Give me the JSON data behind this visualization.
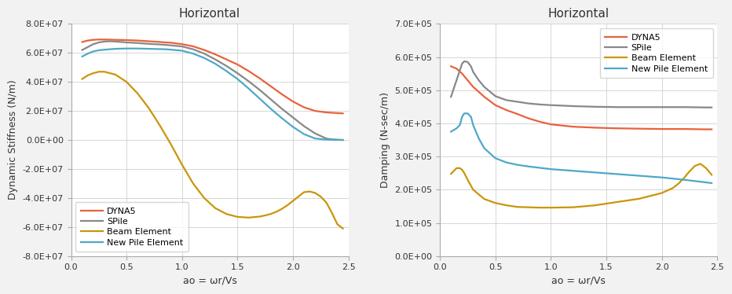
{
  "title": "Horizontal",
  "left_ylabel": "Dynamic Stiffness (N/m)",
  "right_ylabel": "Damping (N-sec/m)",
  "xlabel": "ao = ωr/Vs",
  "colors": {
    "DYNA5": "#E8623C",
    "SPile": "#888888",
    "Beam Element": "#C8960A",
    "New Pile Element": "#4EA8C8"
  },
  "left_ylim": [
    -80000000.0,
    80000000.0
  ],
  "left_yticks": [
    -80000000.0,
    -60000000.0,
    -40000000.0,
    -20000000.0,
    0,
    20000000.0,
    40000000.0,
    60000000.0,
    80000000.0
  ],
  "right_ylim": [
    0,
    700000.0
  ],
  "right_yticks": [
    0,
    100000.0,
    200000.0,
    300000.0,
    400000.0,
    500000.0,
    600000.0,
    700000.0
  ],
  "xlim": [
    0.0,
    2.5
  ],
  "xticks": [
    0.0,
    0.5,
    1.0,
    1.5,
    2.0,
    2.5
  ],
  "left_DYNA5_x": [
    0.1,
    0.15,
    0.2,
    0.25,
    0.3,
    0.4,
    0.5,
    0.6,
    0.7,
    0.8,
    0.85,
    0.9,
    1.0,
    1.1,
    1.2,
    1.3,
    1.4,
    1.5,
    1.6,
    1.7,
    1.8,
    1.9,
    2.0,
    2.1,
    2.2,
    2.3,
    2.4,
    2.45
  ],
  "left_DYNA5_y": [
    67500000.0,
    68500000.0,
    69000000.0,
    69200000.0,
    69200000.0,
    69000000.0,
    68800000.0,
    68500000.0,
    68000000.0,
    67500000.0,
    67200000.0,
    67000000.0,
    66000000.0,
    64500000.0,
    62000000.0,
    59000000.0,
    55500000.0,
    52000000.0,
    47500000.0,
    42500000.0,
    37000000.0,
    31500000.0,
    26500000.0,
    22500000.0,
    20000000.0,
    19000000.0,
    18500000.0,
    18300000.0
  ],
  "left_SPile_x": [
    0.1,
    0.15,
    0.2,
    0.25,
    0.3,
    0.35,
    0.4,
    0.5,
    0.6,
    0.7,
    0.8,
    0.9,
    1.0,
    1.1,
    1.2,
    1.3,
    1.4,
    1.5,
    1.6,
    1.7,
    1.8,
    1.9,
    2.0,
    2.1,
    2.2,
    2.3,
    2.35,
    2.4,
    2.45
  ],
  "left_SPile_y": [
    62000000.0,
    64000000.0,
    66000000.0,
    67200000.0,
    67800000.0,
    68000000.0,
    67800000.0,
    67200000.0,
    66800000.0,
    66200000.0,
    65800000.0,
    65200000.0,
    64400000.0,
    62500000.0,
    59500000.0,
    55500000.0,
    51000000.0,
    46000000.0,
    40500000.0,
    34500000.0,
    28000000.0,
    21500000.0,
    15500000.0,
    9500000.0,
    4500000.0,
    1000000.0,
    400000.0,
    200000.0,
    0.0
  ],
  "left_Beam_x": [
    0.1,
    0.15,
    0.2,
    0.25,
    0.3,
    0.4,
    0.5,
    0.6,
    0.7,
    0.8,
    0.9,
    1.0,
    1.1,
    1.2,
    1.3,
    1.4,
    1.5,
    1.6,
    1.7,
    1.75,
    1.8,
    1.85,
    1.9,
    1.95,
    2.0,
    2.1,
    2.15,
    2.2,
    2.25,
    2.3,
    2.35,
    2.4,
    2.45
  ],
  "left_Beam_y": [
    42000000.0,
    44500000.0,
    46000000.0,
    47000000.0,
    47000000.0,
    45000000.0,
    40000000.0,
    32000000.0,
    22000000.0,
    10000000.0,
    -3000000.0,
    -17000000.0,
    -30000000.0,
    -40000000.0,
    -47000000.0,
    -51000000.0,
    -53000000.0,
    -53500000.0,
    -52800000.0,
    -52000000.0,
    -51000000.0,
    -49500000.0,
    -47500000.0,
    -45000000.0,
    -42000000.0,
    -36000000.0,
    -35500000.0,
    -36500000.0,
    -39000000.0,
    -43000000.0,
    -50000000.0,
    -58000000.0,
    -61000000.0
  ],
  "left_NewPile_x": [
    0.1,
    0.15,
    0.2,
    0.25,
    0.3,
    0.4,
    0.5,
    0.6,
    0.7,
    0.8,
    0.85,
    0.9,
    1.0,
    1.1,
    1.2,
    1.3,
    1.4,
    1.5,
    1.6,
    1.7,
    1.8,
    1.9,
    2.0,
    2.1,
    2.2,
    2.3,
    2.4,
    2.45
  ],
  "left_NewPile_y": [
    57500000.0,
    59500000.0,
    61000000.0,
    61800000.0,
    62200000.0,
    62800000.0,
    63000000.0,
    63000000.0,
    62800000.0,
    62600000.0,
    62500000.0,
    62200000.0,
    61500000.0,
    59500000.0,
    56500000.0,
    52500000.0,
    47500000.0,
    42000000.0,
    35500000.0,
    28500000.0,
    21500000.0,
    15000000.0,
    9000000.0,
    4000000.0,
    1000000.0,
    200000.0,
    0.0,
    0.0
  ],
  "right_DYNA5_x": [
    0.1,
    0.15,
    0.2,
    0.25,
    0.3,
    0.4,
    0.5,
    0.6,
    0.7,
    0.8,
    0.9,
    1.0,
    1.2,
    1.4,
    1.6,
    1.8,
    2.0,
    2.2,
    2.4,
    2.45
  ],
  "right_DYNA5_y": [
    572000.0,
    565000.0,
    550000.0,
    530000.0,
    510000.0,
    480000.0,
    455000.0,
    440000.0,
    428000.0,
    415000.0,
    405000.0,
    397000.0,
    390000.0,
    387000.0,
    385000.0,
    384000.0,
    383000.0,
    383000.0,
    382000.0,
    382000.0
  ],
  "right_SPile_x": [
    0.1,
    0.15,
    0.18,
    0.2,
    0.22,
    0.25,
    0.28,
    0.3,
    0.35,
    0.4,
    0.5,
    0.6,
    0.7,
    0.8,
    0.9,
    1.0,
    1.2,
    1.4,
    1.6,
    1.8,
    2.0,
    2.2,
    2.4,
    2.45
  ],
  "right_SPile_y": [
    480000.0,
    530000.0,
    560000.0,
    580000.0,
    587000.0,
    585000.0,
    572000.0,
    555000.0,
    530000.0,
    510000.0,
    482000.0,
    470000.0,
    465000.0,
    460000.0,
    457000.0,
    455000.0,
    452000.0,
    450000.0,
    449000.0,
    449000.0,
    449000.0,
    449000.0,
    448000.0,
    448000.0
  ],
  "right_Beam_x": [
    0.1,
    0.15,
    0.18,
    0.2,
    0.22,
    0.25,
    0.3,
    0.4,
    0.5,
    0.6,
    0.7,
    0.8,
    0.9,
    1.0,
    1.2,
    1.4,
    1.6,
    1.8,
    2.0,
    2.1,
    2.15,
    2.2,
    2.25,
    2.3,
    2.35,
    2.4,
    2.45
  ],
  "right_Beam_y": [
    248000.0,
    265000.0,
    265000.0,
    260000.0,
    250000.0,
    230000.0,
    200000.0,
    172000.0,
    160000.0,
    153000.0,
    148000.0,
    147000.0,
    146000.0,
    146000.0,
    147000.0,
    153000.0,
    163000.0,
    173000.0,
    190000.0,
    205000.0,
    218000.0,
    235000.0,
    255000.0,
    272000.0,
    278000.0,
    265000.0,
    245000.0
  ],
  "right_NewPile_x": [
    0.1,
    0.15,
    0.18,
    0.2,
    0.22,
    0.25,
    0.28,
    0.3,
    0.35,
    0.4,
    0.5,
    0.6,
    0.7,
    0.8,
    0.9,
    1.0,
    1.2,
    1.4,
    1.6,
    1.8,
    2.0,
    2.2,
    2.4,
    2.45
  ],
  "right_NewPile_y": [
    375000.0,
    385000.0,
    395000.0,
    420000.0,
    430000.0,
    430000.0,
    420000.0,
    395000.0,
    355000.0,
    325000.0,
    295000.0,
    282000.0,
    275000.0,
    270000.0,
    266000.0,
    262000.0,
    257000.0,
    252000.0,
    247000.0,
    242000.0,
    237000.0,
    230000.0,
    222000.0,
    220000.0
  ],
  "bg_color": "#F2F2F2",
  "plot_bg": "#FFFFFF",
  "grid_color": "#D0D0D0"
}
